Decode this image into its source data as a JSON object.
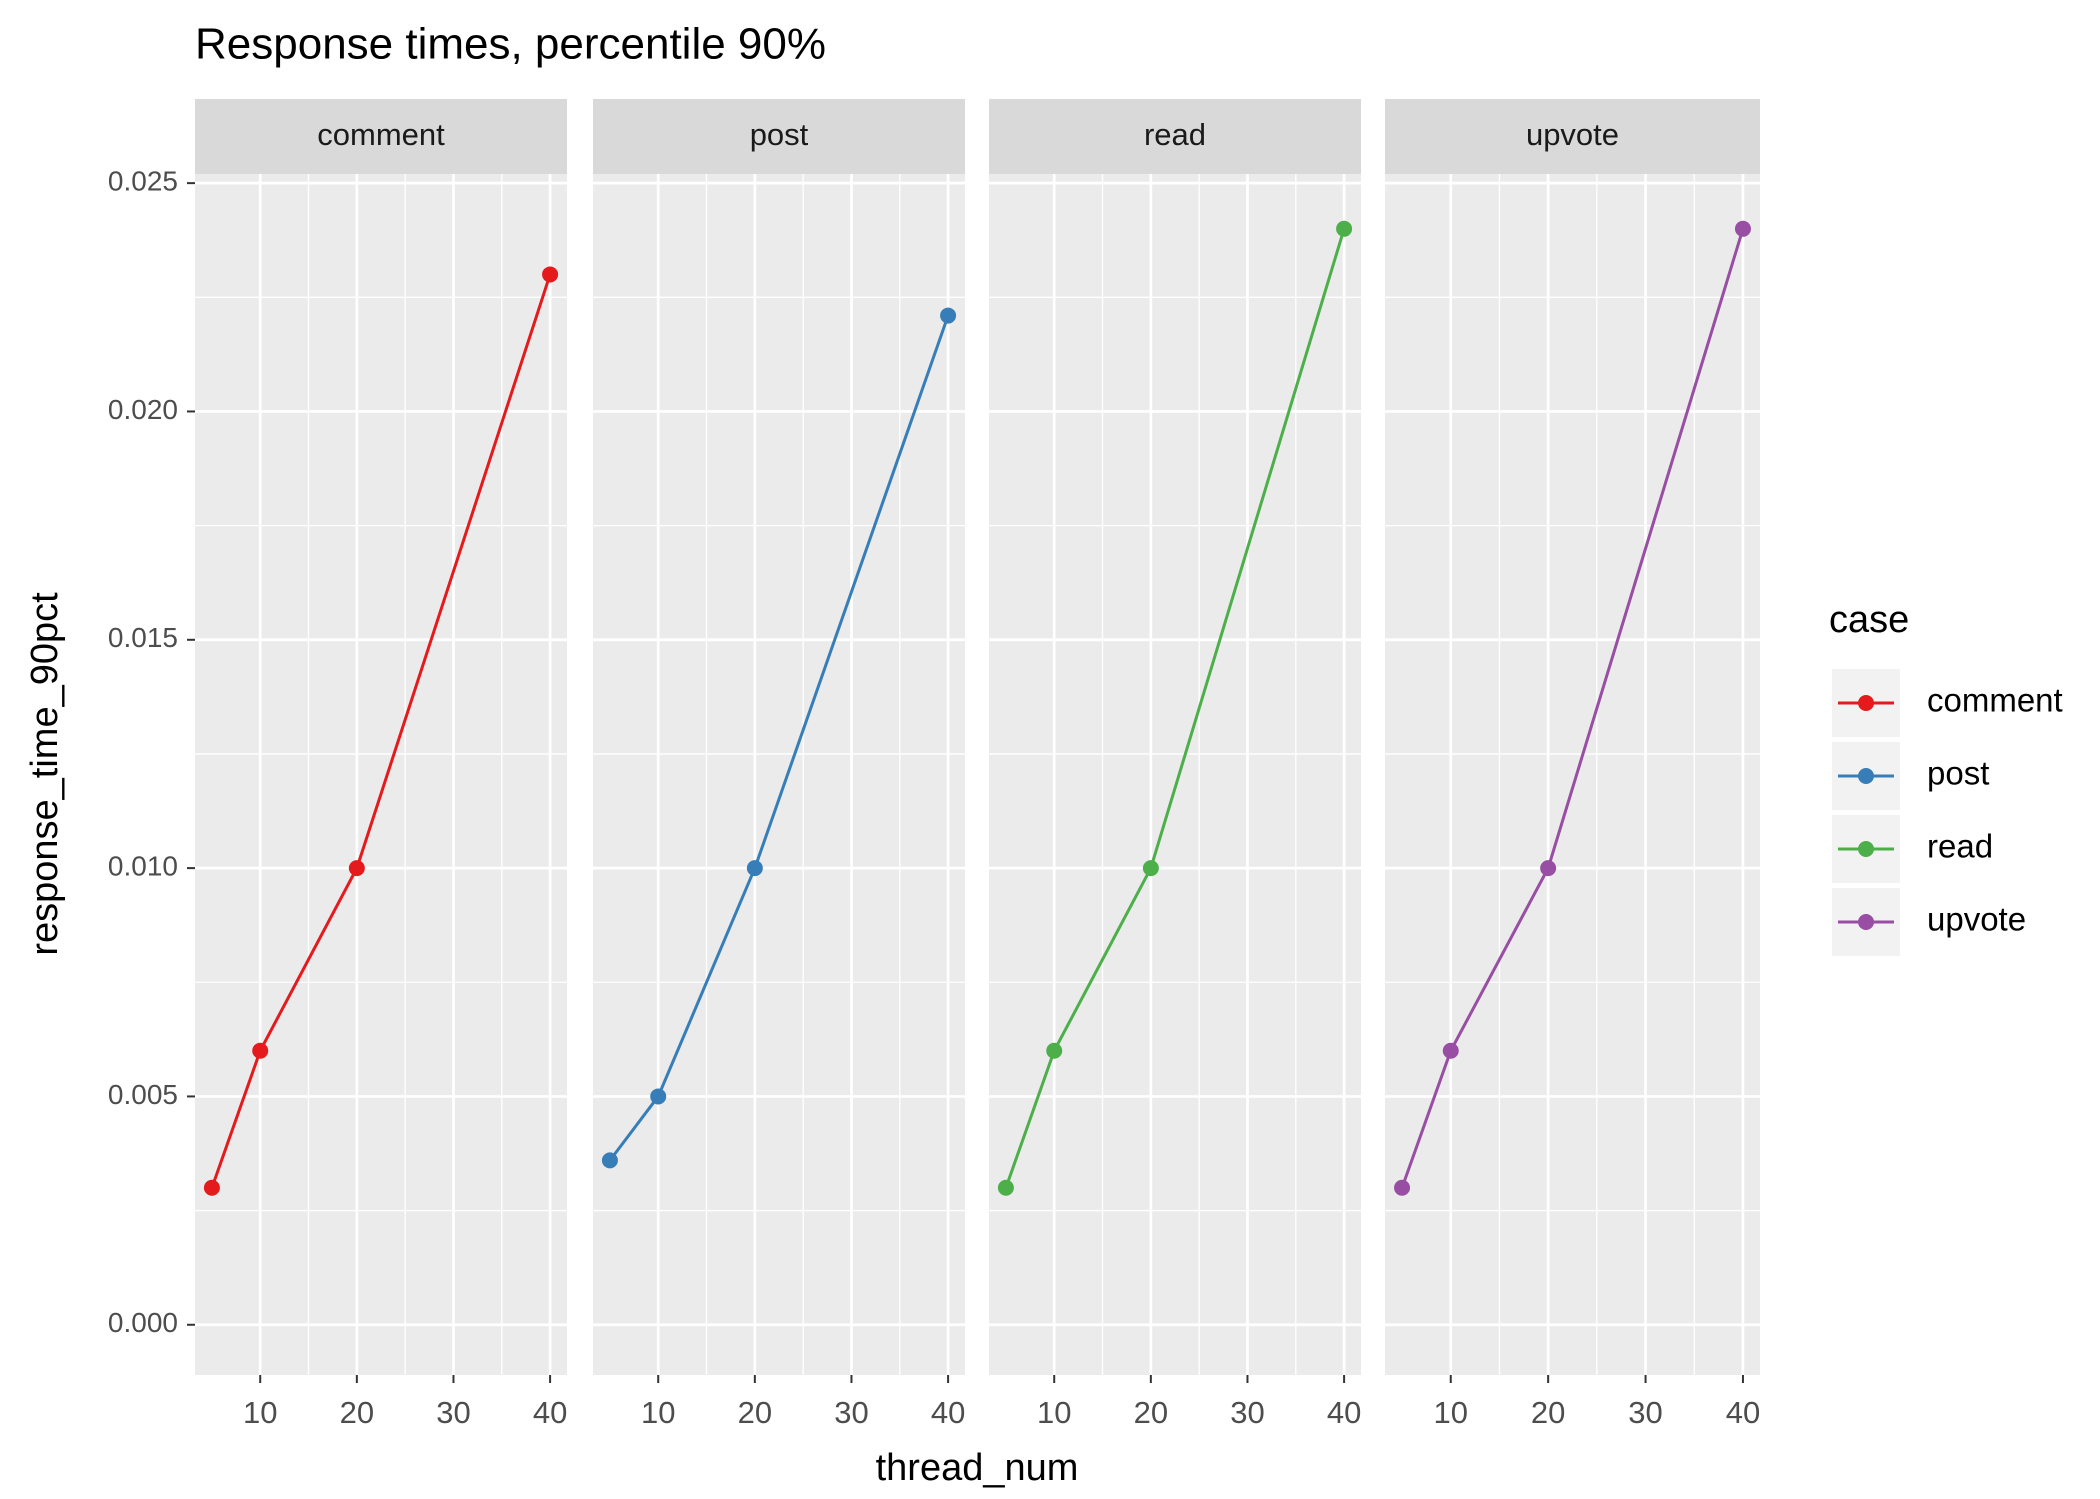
{
  "chart_data": {
    "type": "line",
    "title": "Response times, percentile 90%",
    "x_label": "thread_num",
    "y_label": "response_time_90pct",
    "legend_title": "case",
    "facet": true,
    "grid": true,
    "x": [
      5,
      10,
      20,
      40
    ],
    "series": [
      {
        "name": "comment",
        "color": "#E41A1C",
        "values": [
          0.003,
          0.006,
          0.01,
          0.023
        ]
      },
      {
        "name": "post",
        "color": "#377EB8",
        "values": [
          0.0036,
          0.005,
          0.01,
          0.0221
        ]
      },
      {
        "name": "read",
        "color": "#4DAF4A",
        "values": [
          0.003,
          0.006,
          0.01,
          0.024
        ]
      },
      {
        "name": "upvote",
        "color": "#984EA3",
        "values": [
          0.003,
          0.006,
          0.01,
          0.024
        ]
      }
    ],
    "xlim": [
      3.25,
      41.75
    ],
    "xticks": [
      10,
      20,
      30,
      40
    ],
    "ylim": [
      -0.0011,
      0.0252
    ],
    "yticks": [
      {
        "value": 0,
        "label": "0.000"
      },
      0.005,
      {
        "value": 0.01,
        "label": "0.010"
      },
      0.015,
      {
        "value": 0.02,
        "label": "0.020"
      },
      0.025
    ]
  }
}
